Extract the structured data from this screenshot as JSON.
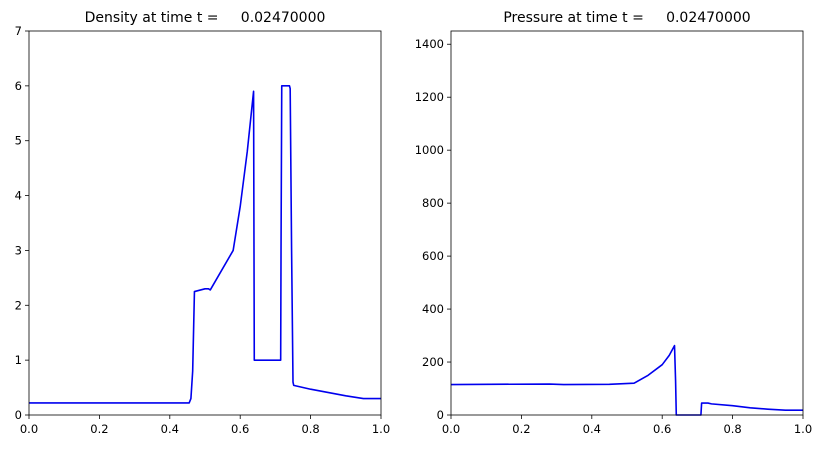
{
  "chart_data": [
    {
      "type": "line",
      "title": "Density at time t =     0.02470000",
      "xlabel": "",
      "ylabel": "",
      "xlim": [
        0,
        1
      ],
      "ylim": [
        0,
        7
      ],
      "xticks": [
        "0.0",
        "0.2",
        "0.4",
        "0.6",
        "0.8",
        "1.0"
      ],
      "yticks": [
        "0",
        "1",
        "2",
        "3",
        "4",
        "5",
        "6",
        "7"
      ],
      "grid": false,
      "color": "#0000ee",
      "series": [
        {
          "x": [
            0.0,
            0.455,
            0.46,
            0.465,
            0.47,
            0.5,
            0.51,
            0.515,
            0.58,
            0.6,
            0.62,
            0.638,
            0.64,
            0.715,
            0.716,
            0.718,
            0.74,
            0.742,
            0.746,
            0.75,
            0.752,
            0.8,
            0.9,
            0.95,
            1.0
          ],
          "y": [
            0.22,
            0.22,
            0.3,
            0.8,
            2.25,
            2.3,
            2.3,
            2.28,
            3.0,
            3.8,
            4.8,
            5.9,
            1.0,
            1.0,
            3.0,
            6.0,
            6.0,
            5.95,
            3.0,
            0.6,
            0.54,
            0.47,
            0.35,
            0.3,
            0.3
          ]
        }
      ]
    },
    {
      "type": "line",
      "title": "Pressure at time t =     0.02470000",
      "xlabel": "",
      "ylabel": "",
      "xlim": [
        0,
        1
      ],
      "ylim": [
        0,
        1450
      ],
      "xticks": [
        "0.0",
        "0.2",
        "0.4",
        "0.6",
        "0.8",
        "1.0"
      ],
      "yticks": [
        "0",
        "200",
        "400",
        "600",
        "800",
        "1000",
        "1200",
        "1400"
      ],
      "grid": false,
      "color": "#0000ee",
      "series": [
        {
          "x": [
            0.0,
            0.28,
            0.32,
            0.45,
            0.52,
            0.56,
            0.6,
            0.62,
            0.635,
            0.638,
            0.64,
            0.71,
            0.712,
            0.73,
            0.74,
            0.8,
            0.85,
            0.9,
            0.95,
            1.0
          ],
          "y": [
            115,
            117,
            115,
            116,
            120,
            150,
            190,
            225,
            262,
            130,
            0,
            0,
            45,
            45,
            42,
            35,
            27,
            22,
            18,
            18
          ]
        }
      ]
    }
  ]
}
